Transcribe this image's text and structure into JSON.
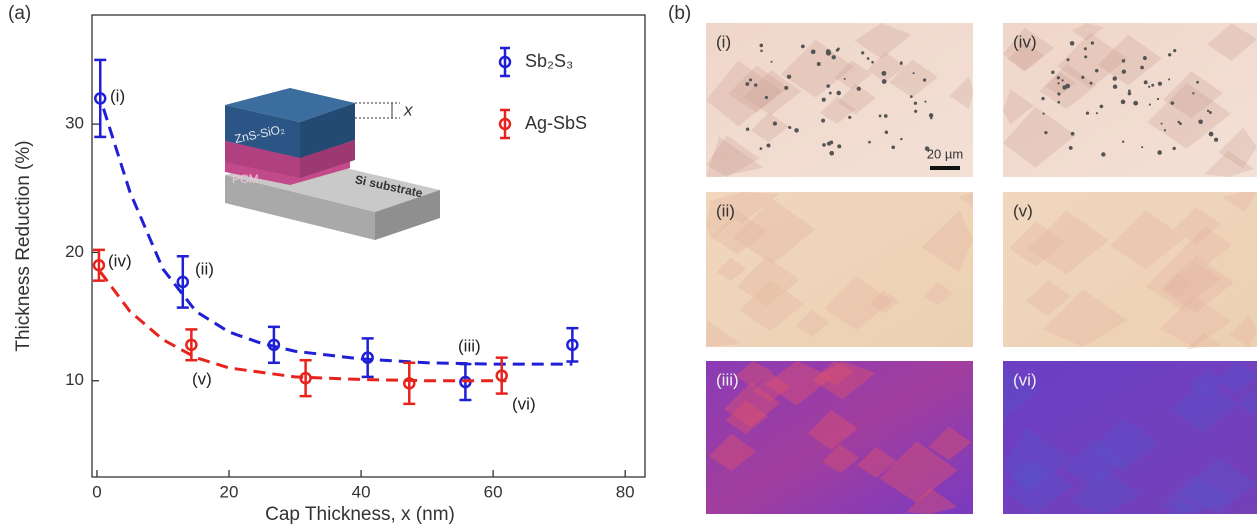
{
  "chart_data": {
    "type": "errorbar",
    "panel_label": "(a)",
    "x_label": "Cap Thickness, x (nm)",
    "y_label": "Thickness Reduction (%)",
    "xlim": [
      -0.75,
      83
    ],
    "xticks": [
      0,
      20,
      40,
      60,
      80
    ],
    "ylim": [
      2.5,
      38.5
    ],
    "yticks": [
      10,
      20,
      30
    ],
    "legend": "upper right",
    "series": [
      {
        "name": "Sb₂S₃",
        "color": "#1f1fd6",
        "x": [
          0.5,
          13,
          26.8,
          41,
          55.8,
          72
        ],
        "values": [
          32,
          17.7,
          12.8,
          11.8,
          9.9,
          12.8
        ],
        "errors": [
          3,
          2,
          1.4,
          1.5,
          1.4,
          1.3
        ],
        "fit": {
          "x": [
            1,
            5,
            10,
            15,
            20,
            25,
            30,
            40,
            50,
            60,
            72
          ],
          "values": [
            31.2,
            24.7,
            18.7,
            15.4,
            13.8,
            12.9,
            12.3,
            11.7,
            11.4,
            11.3,
            11.3
          ]
        }
      },
      {
        "name": "Ag-SbS",
        "color": "#e8231c",
        "x": [
          0.3,
          14.3,
          31.6,
          47.3,
          61.3
        ],
        "values": [
          19,
          12.8,
          10.2,
          9.8,
          10.4
        ],
        "errors": [
          1.2,
          1.2,
          1.4,
          1.6,
          1.4
        ],
        "fit": {
          "x": [
            0.5,
            5,
            10,
            15,
            20,
            30,
            40,
            50,
            62
          ],
          "values": [
            18.5,
            15.4,
            13.2,
            11.8,
            11.0,
            10.3,
            10.1,
            10.0,
            10.0
          ]
        }
      }
    ],
    "annotations": [
      "(i)",
      "(ii)",
      "(iii)",
      "(iv)",
      "(v)",
      "(vi)"
    ],
    "inset": {
      "top_layer": "ZnS-SiO₂",
      "cap": "x",
      "pcm": "PCM",
      "substrate": "Si substrate"
    }
  },
  "micrographs": {
    "panel_label": "(b)",
    "scale_bar": "20 µm",
    "images": [
      "(i)",
      "(iv)",
      "(ii)",
      "(v)",
      "(iii)",
      "(vi)"
    ]
  }
}
